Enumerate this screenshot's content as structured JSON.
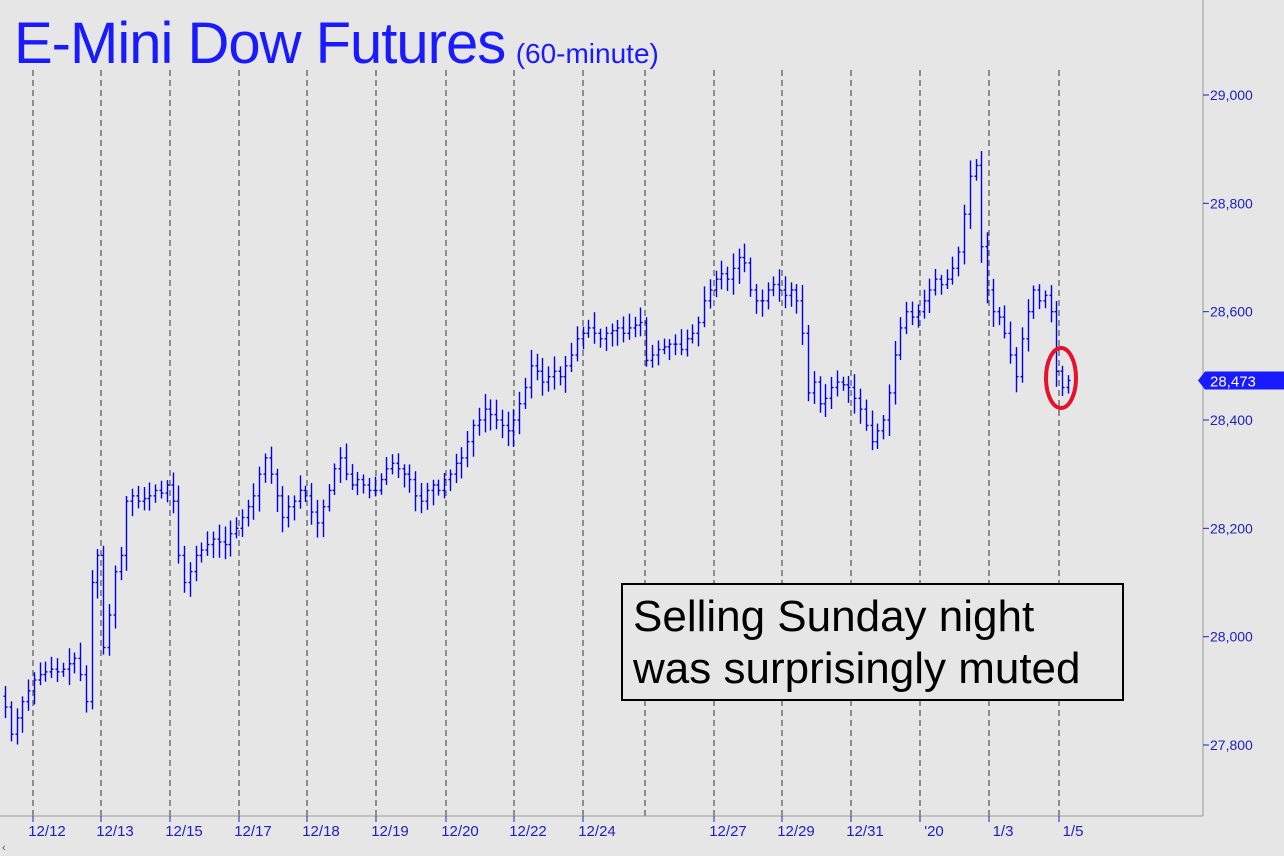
{
  "title": {
    "main": "E-Mini Dow Futures",
    "sub": "(60-minute)"
  },
  "annotation": {
    "line1": "Selling Sunday night",
    "line2": "was surprisingly muted"
  },
  "last_price_label": "28,473",
  "colors": {
    "background": "#e6e6e6",
    "bars": "#0000ee",
    "axis_text": "#2020c0",
    "highlight_circle": "#e8102a",
    "last_price_tag": "#1a1aff"
  },
  "chart_data": {
    "type": "ohlc",
    "title": "E-Mini Dow Futures",
    "subtitle": "(60-minute)",
    "xlabel": "",
    "ylabel": "",
    "ylim": [
      27640,
      29220
    ],
    "y_ticks": [
      27800,
      28000,
      28200,
      28400,
      28600,
      28800,
      29000
    ],
    "y_tick_labels": [
      "27,800",
      "28,000",
      "28,200",
      "28,400",
      "28,600",
      "28,800",
      "29,000"
    ],
    "x_tick_labels": [
      "12/12",
      "12/13",
      "12/15",
      "12/17",
      "12/18",
      "12/19",
      "12/20",
      "12/22",
      "12/24",
      "12/27",
      "12/29",
      "12/31",
      "'20",
      "1/3",
      "1/5"
    ],
    "grid": "vertical dashed at session starts",
    "last_price": 28473,
    "series": [
      {
        "values": [
          27870,
          27820,
          27850,
          27880,
          27900,
          27920,
          27930,
          27935,
          27940,
          27935,
          27940,
          27950,
          27960,
          27930,
          27880,
          28100,
          28150,
          27980,
          28040,
          28120,
          28150,
          28250,
          28260,
          28250,
          28255,
          28260,
          28270,
          28265,
          28280,
          28250,
          28150,
          28100,
          28120,
          28150,
          28160,
          28170,
          28180,
          28175,
          28170,
          28190,
          28200,
          28220,
          28240,
          28260,
          28300,
          28330,
          28300,
          28260,
          28220,
          28240,
          28250,
          28270,
          28260,
          28230,
          28210,
          28240,
          28270,
          28310,
          28330,
          28300,
          28280,
          28290,
          28280,
          28270,
          28270,
          28290,
          28310,
          28320,
          28310,
          28300,
          28290,
          28260,
          28250,
          28270,
          28280,
          28270,
          28290,
          28300,
          28320,
          28330,
          28360,
          28390,
          28400,
          28420,
          28410,
          28400,
          28390,
          28380,
          28400,
          28430,
          28460,
          28500,
          28490,
          28470,
          28480,
          28490,
          28480,
          28500,
          28520,
          28550,
          28560,
          28570,
          28560,
          28550,
          28560,
          28565,
          28570,
          28560,
          28570,
          28575,
          28580,
          28510,
          28520,
          28530,
          28535,
          28540,
          28540,
          28530,
          28550,
          28560,
          28580,
          28620,
          28640,
          28660,
          28670,
          28660,
          28680,
          28700,
          28690,
          28640,
          28620,
          28620,
          28640,
          28650,
          28640,
          28630,
          28640,
          28620,
          28560,
          28450,
          28470,
          28430,
          28440,
          28460,
          28470,
          28465,
          28460,
          28440,
          28420,
          28390,
          28360,
          28380,
          28400,
          28450,
          28520,
          28570,
          28600,
          28590,
          28600,
          28620,
          28640,
          28660,
          28650,
          28660,
          28680,
          28710,
          28780,
          28850,
          28870,
          28720,
          28640,
          28600,
          28590,
          28560,
          28520,
          28480,
          28550,
          28600,
          28640,
          28620,
          28630,
          28600,
          28490,
          28460,
          28473
        ]
      }
    ]
  }
}
